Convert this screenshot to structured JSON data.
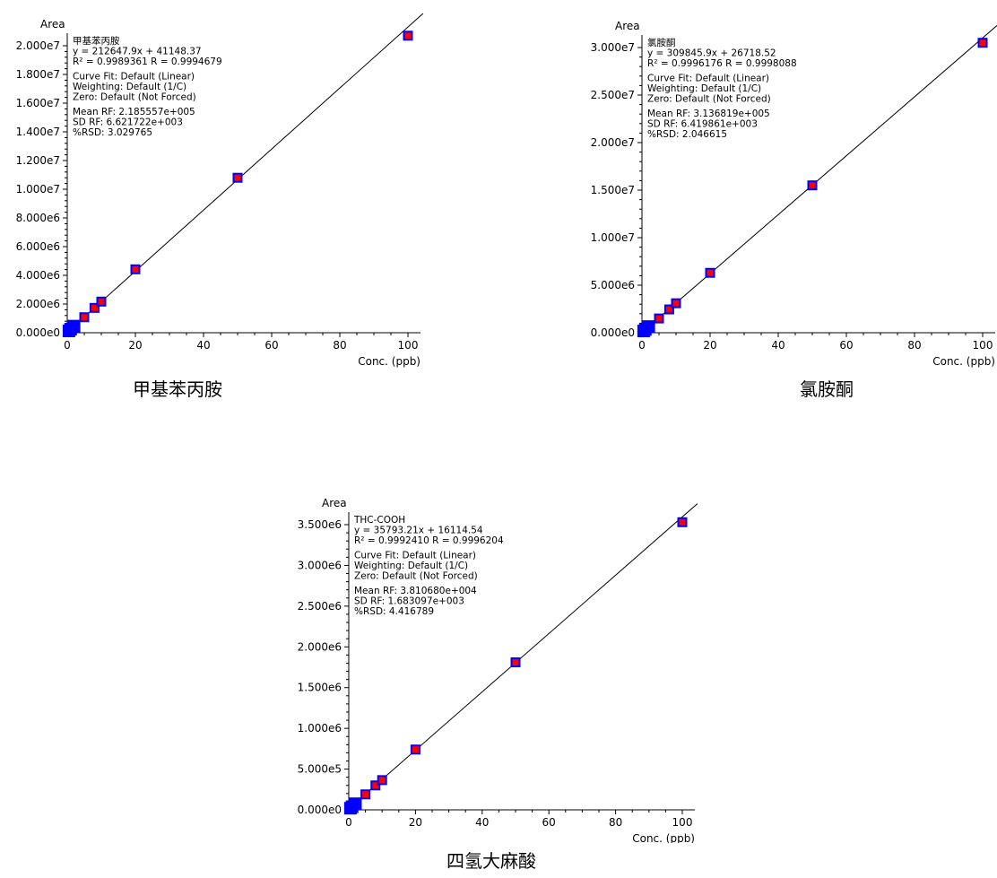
{
  "chart_data": [
    {
      "type": "scatter",
      "caption": "甲基苯丙胺",
      "ylabel": "Area",
      "xlabel": "Conc. (ppb)",
      "xlim": [
        0,
        100
      ],
      "ylim": [
        0,
        20000000
      ],
      "x_ticks": [
        "0",
        "20",
        "40",
        "60",
        "80",
        "100"
      ],
      "y_ticks": [
        "0.000e0",
        "2.000e6",
        "4.000e6",
        "6.000e6",
        "8.000e6",
        "1.000e7",
        "1.200e7",
        "1.400e7",
        "1.600e7",
        "1.800e7",
        "2.000e7"
      ],
      "points": {
        "x": [
          0.5,
          1,
          2,
          5,
          8,
          10,
          20,
          50,
          100
        ],
        "y": [
          125000,
          250000,
          460000,
          1080000,
          1730000,
          2170000,
          4420000,
          10800000,
          20700000
        ]
      },
      "fit": {
        "slope": 212647.9,
        "intercept": 41148.37
      },
      "annotation": [
        "甲基苯丙胺",
        "y = 212647.9x + 41148.37",
        "R² = 0.9989361    R = 0.9994679",
        "Curve Fit: Default (Linear)",
        "Weighting: Default (1/C)",
        "Zero: Default (Not Forced)",
        "Mean RF: 2.185557e+005",
        "SD RF: 6.621722e+003",
        "%RSD: 3.029765"
      ],
      "colors": {
        "point_fill": "#ff0000",
        "point_border": "#0000ff",
        "line": "#000000"
      }
    },
    {
      "type": "scatter",
      "caption": "氯胺酮",
      "ylabel": "Area",
      "xlabel": "Conc. (ppb)",
      "xlim": [
        0,
        100
      ],
      "ylim": [
        0,
        30000000
      ],
      "x_ticks": [
        "0",
        "20",
        "40",
        "60",
        "80",
        "100"
      ],
      "y_ticks": [
        "0.000e0",
        "5.000e6",
        "1.000e7",
        "1.500e7",
        "2.000e7",
        "2.500e7",
        "3.000e7"
      ],
      "points": {
        "x": [
          0.5,
          1,
          2,
          5,
          8,
          10,
          20,
          50,
          100
        ],
        "y": [
          180000,
          340000,
          650000,
          1500000,
          2450000,
          3100000,
          6300000,
          15500000,
          30500000
        ]
      },
      "fit": {
        "slope": 309845.9,
        "intercept": 26718.52
      },
      "annotation": [
        "氯胺酮",
        "y = 309845.9x + 26718.52",
        "R² = 0.9996176    R = 0.9998088",
        "Curve Fit: Default (Linear)",
        "Weighting: Default (1/C)",
        "Zero: Default (Not Forced)",
        "Mean RF: 3.136819e+005",
        "SD RF: 6.419861e+003",
        "%RSD: 2.046615"
      ],
      "colors": {
        "point_fill": "#ff0000",
        "point_border": "#0000ff",
        "line": "#000000"
      }
    },
    {
      "type": "scatter",
      "caption": "四氢大麻酸",
      "ylabel": "Area",
      "xlabel": "Conc. (ppb)",
      "xlim": [
        0,
        100
      ],
      "ylim": [
        0,
        3500000
      ],
      "x_ticks": [
        "0",
        "20",
        "40",
        "60",
        "80",
        "100"
      ],
      "y_ticks": [
        "0.000e0",
        "5.000e5",
        "1.000e6",
        "1.500e6",
        "2.000e6",
        "2.500e6",
        "3.000e6",
        "3.500e6"
      ],
      "points": {
        "x": [
          0.5,
          1,
          2,
          5,
          8,
          10,
          20,
          50,
          100
        ],
        "y": [
          20000,
          38000,
          75000,
          190000,
          300000,
          365000,
          740000,
          1810000,
          3530000
        ]
      },
      "fit": {
        "slope": 35793.21,
        "intercept": 16114.54
      },
      "annotation": [
        "THC-COOH",
        "y = 35793.21x + 16114.54",
        "R² = 0.9992410    R = 0.9996204",
        "Curve Fit: Default (Linear)",
        "Weighting: Default (1/C)",
        "Zero: Default (Not Forced)",
        "Mean RF: 3.810680e+004",
        "SD RF: 1.683097e+003",
        "%RSD: 4.416789"
      ],
      "colors": {
        "point_fill": "#ff0000",
        "point_border": "#0000ff",
        "line": "#000000"
      }
    }
  ]
}
